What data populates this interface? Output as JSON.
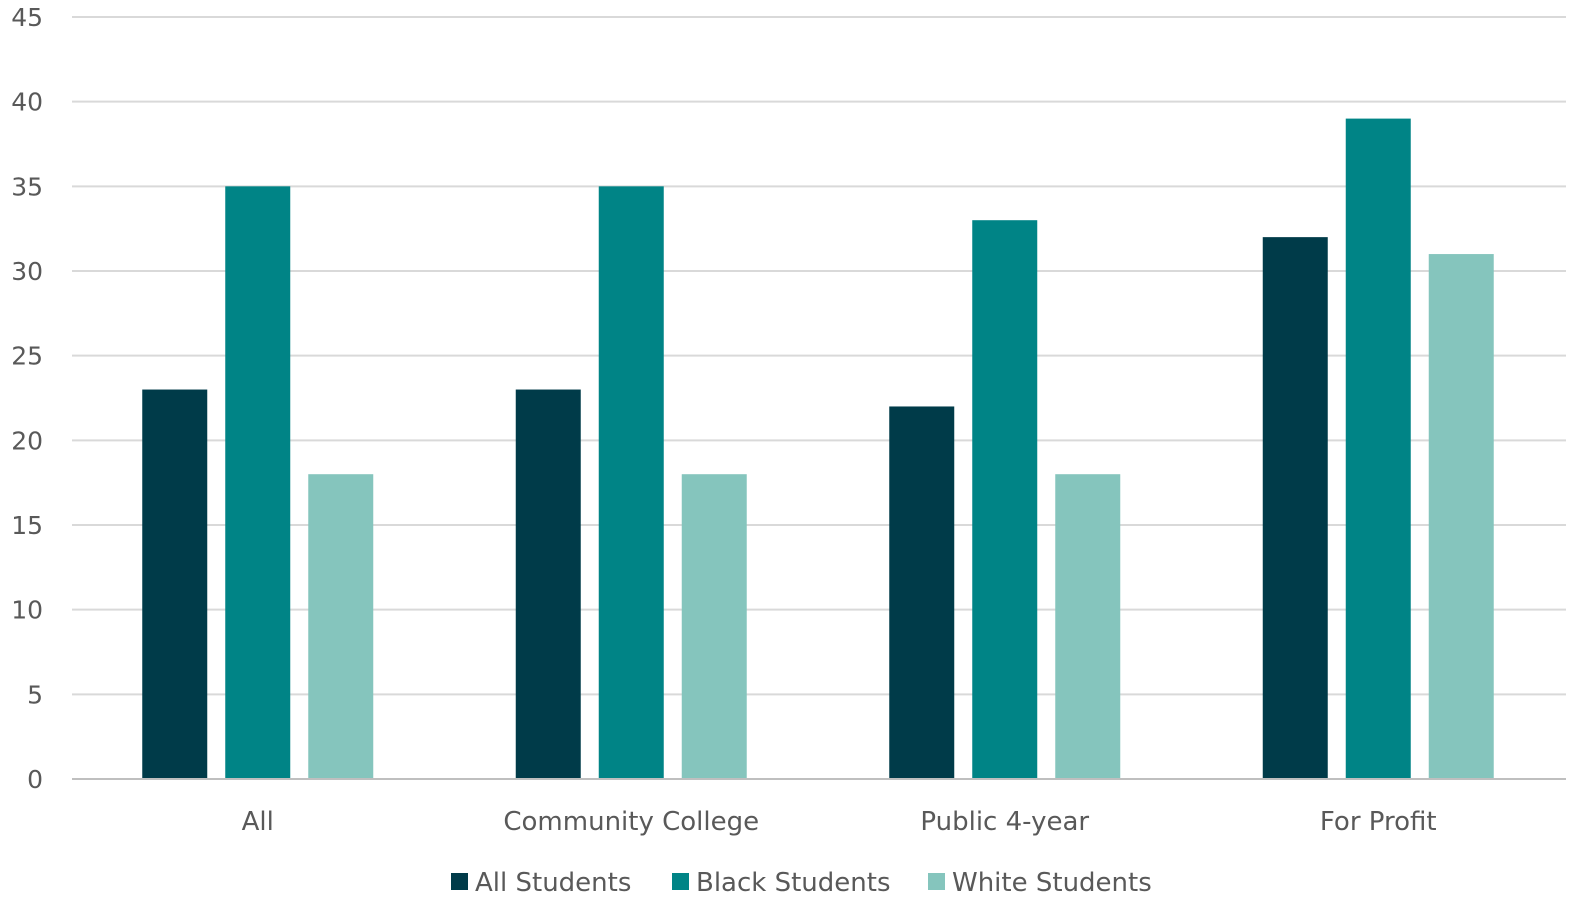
{
  "chart_data": {
    "type": "bar",
    "title": "",
    "xlabel": "",
    "ylabel": "",
    "ylim": [
      0,
      45
    ],
    "yticks": [
      0,
      5,
      10,
      15,
      20,
      25,
      30,
      35,
      40,
      45
    ],
    "grid": true,
    "legend_position": "bottom",
    "categories": [
      "All",
      "Community College",
      "Public 4-year",
      "For Profit"
    ],
    "series": [
      {
        "name": "All Students",
        "color": "#003b49",
        "values": [
          23,
          23,
          22,
          32
        ]
      },
      {
        "name": "Black Students",
        "color": "#008486",
        "values": [
          35,
          35,
          33,
          39
        ]
      },
      {
        "name": "White Students",
        "color": "#85c5bd",
        "values": [
          18,
          18,
          18,
          31
        ]
      }
    ]
  }
}
